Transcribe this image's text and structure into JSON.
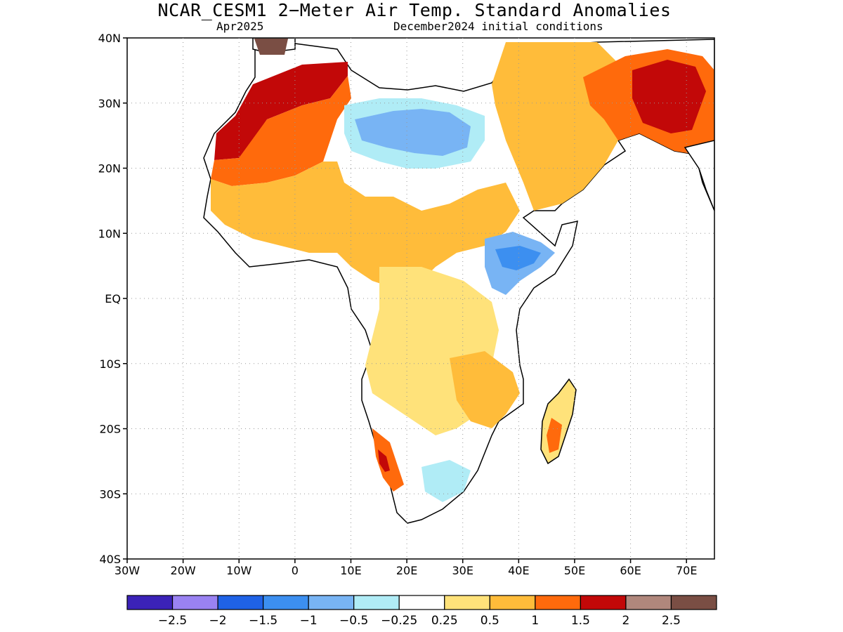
{
  "title": "NCAR_CESM1 2−Meter Air Temp. Standard Anomalies",
  "subtitle_left": "Apr2025",
  "subtitle_right": "December2024 initial conditions",
  "map": {
    "lat_labels": [
      "40N",
      "30N",
      "20N",
      "10N",
      "EQ",
      "10S",
      "20S",
      "30S",
      "40S"
    ],
    "lon_labels": [
      "30W",
      "20W",
      "10W",
      "0",
      "10E",
      "20E",
      "30E",
      "40E",
      "50E",
      "60E",
      "70E"
    ],
    "lon_range": [
      -30,
      75
    ],
    "lat_range": [
      -40,
      40
    ],
    "grid": "dotted"
  },
  "legend": {
    "colors": [
      "#3b22b8",
      "#9a82f2",
      "#1f62e6",
      "#3c8ff0",
      "#78b4f4",
      "#b0ecf6",
      "#ffffff",
      "#ffe27a",
      "#ffbc3a",
      "#ff6a0c",
      "#c20808",
      "#b0877c",
      "#7a4e44"
    ],
    "labels": [
      "−2.5",
      "−2",
      "−1.5",
      "−1",
      "−0.5",
      "−0.25",
      "0.25",
      "0.5",
      "1",
      "1.5",
      "2",
      "2.5"
    ]
  }
}
